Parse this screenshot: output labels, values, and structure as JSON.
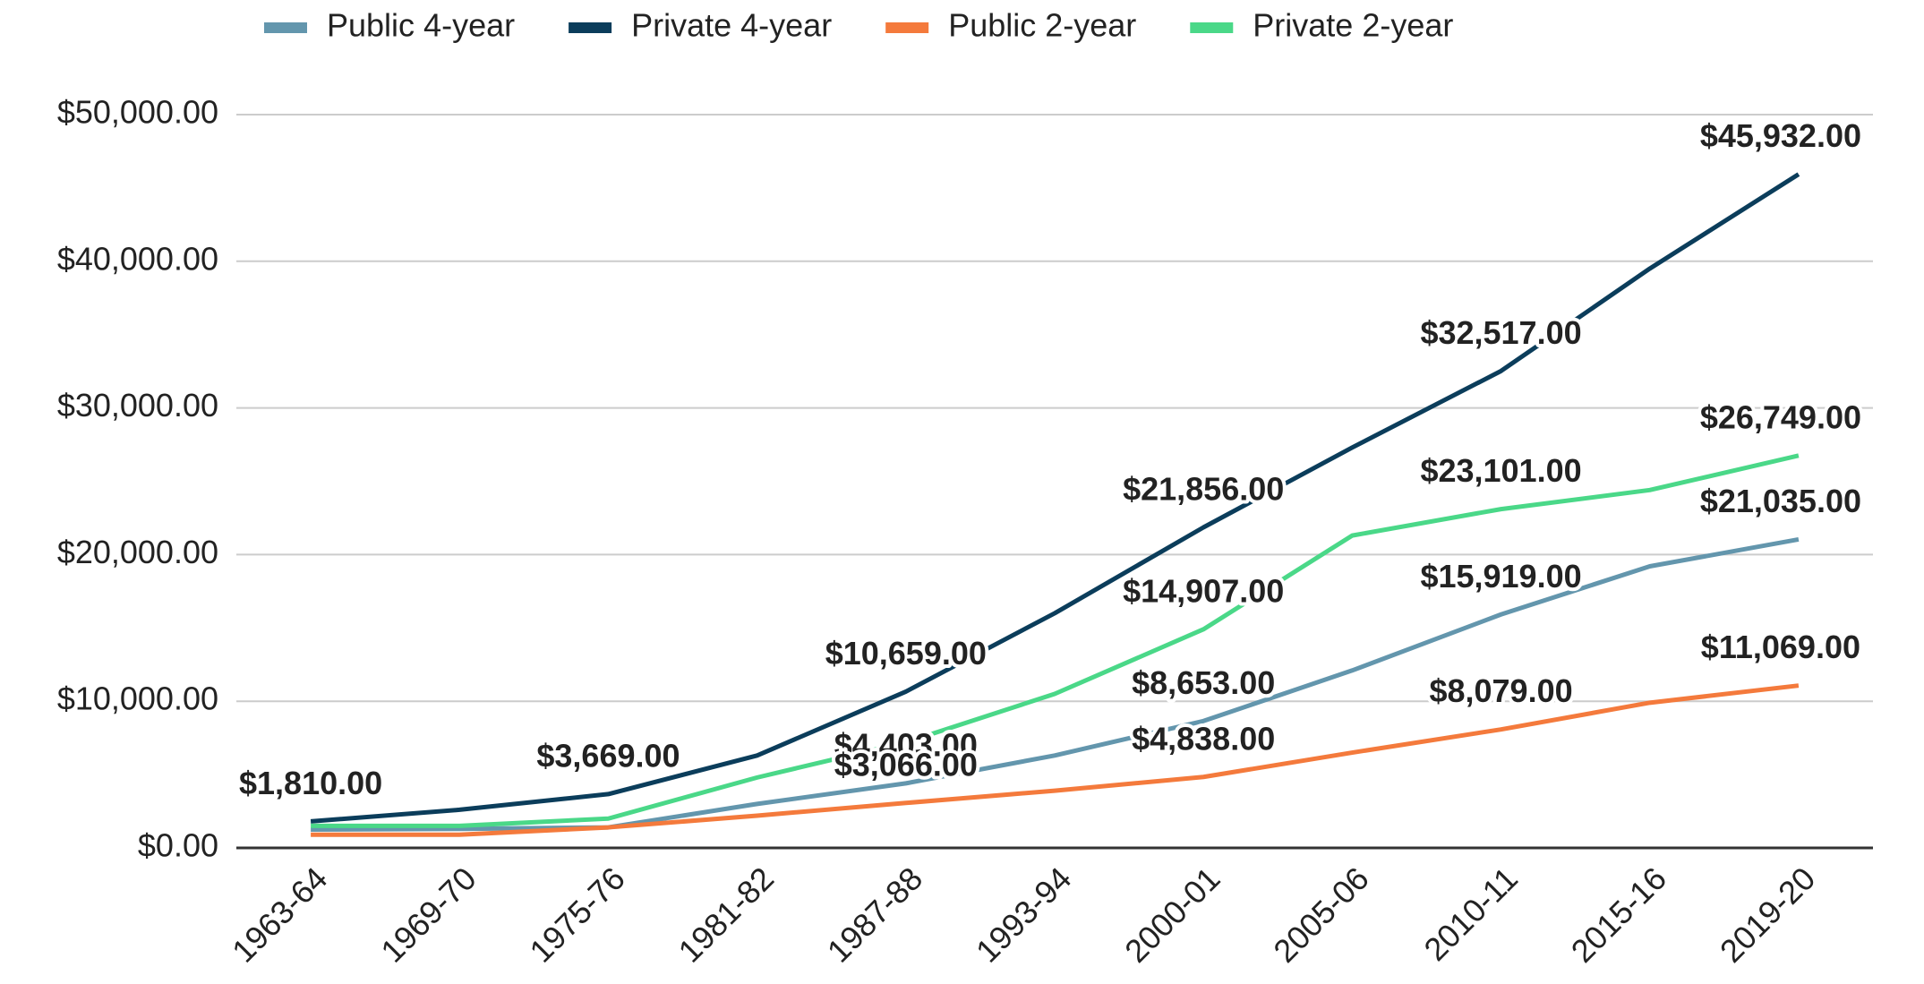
{
  "chart_data": {
    "type": "line",
    "categories": [
      "1963-64",
      "1969-70",
      "1975-76",
      "1981-82",
      "1987-88",
      "1993-94",
      "2000-01",
      "2005-06",
      "2010-11",
      "2015-16",
      "2019-20"
    ],
    "series": [
      {
        "name": "Public 4-year",
        "color": "#6396ad",
        "values": [
          1250,
          1300,
          1400,
          3000,
          4403,
          6300,
          8653,
          12100,
          15919,
          19200,
          21035
        ],
        "value_labels": [
          null,
          null,
          null,
          null,
          "$4,403.00",
          null,
          "$8,653.00",
          null,
          "$15,919.00",
          null,
          "$21,035.00"
        ]
      },
      {
        "name": "Private 4-year",
        "color": "#0b3d5b",
        "values": [
          1810,
          2600,
          3669,
          6300,
          10659,
          16000,
          21856,
          27300,
          32517,
          39500,
          45932
        ],
        "value_labels": [
          "$1,810.00",
          null,
          "$3,669.00",
          null,
          "$10,659.00",
          null,
          "$21,856.00",
          null,
          "$32,517.00",
          null,
          "$45,932.00"
        ]
      },
      {
        "name": "Public 2-year",
        "color": "#f47a3c",
        "values": [
          900,
          900,
          1400,
          2200,
          3066,
          3900,
          4838,
          6500,
          8079,
          9900,
          11069
        ],
        "value_labels": [
          null,
          null,
          null,
          null,
          "$3,066.00",
          null,
          "$4,838.00",
          null,
          "$8,079.00",
          null,
          "$11,069.00"
        ]
      },
      {
        "name": "Private 2-year",
        "color": "#4ad888",
        "values": [
          1500,
          1500,
          2000,
          4800,
          7200,
          10500,
          14907,
          21300,
          23101,
          24400,
          26749
        ],
        "value_labels": [
          null,
          null,
          null,
          null,
          null,
          null,
          "$14,907.00",
          null,
          "$23,101.00",
          null,
          "$26,749.00"
        ]
      }
    ],
    "ylim": [
      0,
      50000
    ],
    "yticks": [
      {
        "value": 0,
        "label": "$0.00"
      },
      {
        "value": 10000,
        "label": "$10,000.00"
      },
      {
        "value": 20000,
        "label": "$20,000.00"
      },
      {
        "value": 30000,
        "label": "$30,000.00"
      },
      {
        "value": 40000,
        "label": "$40,000.00"
      },
      {
        "value": 50000,
        "label": "$50,000.00"
      }
    ],
    "grid": true,
    "legend": "top"
  }
}
